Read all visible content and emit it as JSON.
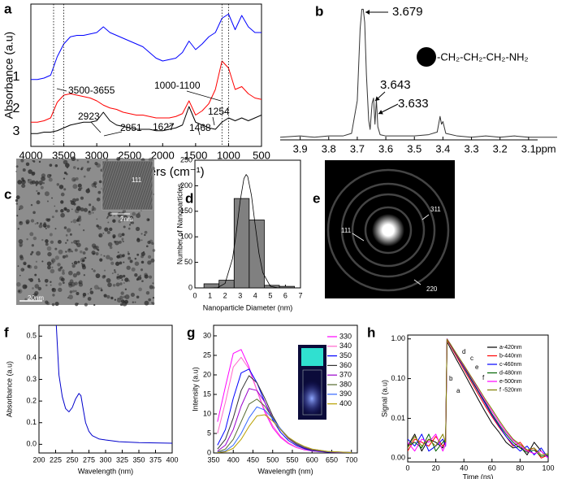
{
  "chart_data": [
    {
      "type": "line",
      "label": "a",
      "xlabel": "Wavenumbers (cm⁻¹)",
      "ylabel": "Absorbance (a.u)",
      "x": [
        4000,
        3900,
        3800,
        3700,
        3600,
        3500,
        3400,
        3300,
        3200,
        3100,
        3000,
        2900,
        2800,
        2700,
        2600,
        2500,
        2400,
        2300,
        2200,
        2100,
        2000,
        1900,
        1800,
        1700,
        1600,
        1500,
        1400,
        1300,
        1200,
        1100,
        1000,
        900,
        800,
        700,
        600,
        500
      ],
      "series": [
        {
          "name": "1",
          "color": "#0000ff",
          "values": [
            0.47,
            0.47,
            0.48,
            0.5,
            0.63,
            0.72,
            0.77,
            0.78,
            0.78,
            0.79,
            0.8,
            0.84,
            0.8,
            0.78,
            0.76,
            0.74,
            0.72,
            0.7,
            0.66,
            0.62,
            0.6,
            0.61,
            0.62,
            0.66,
            0.74,
            0.68,
            0.72,
            0.77,
            0.8,
            0.9,
            0.93,
            0.82,
            0.92,
            0.84,
            0.8,
            0.8
          ]
        },
        {
          "name": "2",
          "color": "#ff0000",
          "values": [
            0.17,
            0.17,
            0.18,
            0.2,
            0.31,
            0.36,
            0.37,
            0.36,
            0.35,
            0.34,
            0.32,
            0.29,
            0.27,
            0.26,
            0.24,
            0.23,
            0.22,
            0.22,
            0.21,
            0.2,
            0.2,
            0.2,
            0.21,
            0.23,
            0.32,
            0.22,
            0.25,
            0.3,
            0.4,
            0.6,
            0.55,
            0.4,
            0.42,
            0.37,
            0.34,
            0.33
          ]
        },
        {
          "name": "3",
          "color": "#000000",
          "values": [
            0.09,
            0.09,
            0.1,
            0.1,
            0.11,
            0.13,
            0.15,
            0.16,
            0.17,
            0.17,
            0.18,
            0.24,
            0.18,
            0.15,
            0.14,
            0.13,
            0.12,
            0.12,
            0.12,
            0.11,
            0.11,
            0.12,
            0.13,
            0.15,
            0.28,
            0.17,
            0.15,
            0.13,
            0.12,
            0.17,
            0.2,
            0.18,
            0.2,
            0.18,
            0.2,
            0.22
          ]
        }
      ],
      "xlim": [
        4000,
        500
      ],
      "xticks": [
        4000,
        3500,
        3000,
        2500,
        2000,
        1500,
        1000,
        500
      ],
      "ylim": [
        0,
        1
      ],
      "vlines": [
        3655,
        3500,
        1100,
        1000
      ],
      "annotations": [
        "3500-3655",
        "1000-1100",
        "2923",
        "2851",
        "1627",
        "1468",
        "1254"
      ]
    },
    {
      "type": "line",
      "label": "b",
      "xlabel": "ppm",
      "x": [
        3.97,
        3.9,
        3.85,
        3.8,
        3.75,
        3.72,
        3.7,
        3.69,
        3.684,
        3.679,
        3.674,
        3.668,
        3.66,
        3.655,
        3.648,
        3.643,
        3.638,
        3.633,
        3.628,
        3.62,
        3.6,
        3.55,
        3.5,
        3.45,
        3.42,
        3.41,
        3.405,
        3.4,
        3.39,
        3.35,
        3.3,
        3.25,
        3.2,
        3.15,
        3.1,
        3.05,
        3.0
      ],
      "values": [
        0.02,
        0.03,
        0.02,
        0.03,
        0.03,
        0.05,
        0.3,
        0.85,
        1.0,
        1.0,
        0.9,
        0.5,
        0.15,
        0.08,
        0.28,
        0.32,
        0.12,
        0.31,
        0.1,
        0.04,
        0.03,
        0.03,
        0.03,
        0.04,
        0.06,
        0.18,
        0.12,
        0.14,
        0.05,
        0.03,
        0.02,
        0.03,
        0.02,
        0.03,
        0.02,
        0.02,
        0.02
      ],
      "color": "#333333",
      "xlim": [
        3.97,
        3.0
      ],
      "xticks": [
        3.9,
        3.8,
        3.7,
        3.6,
        3.5,
        3.4,
        3.3,
        3.2,
        3.1
      ],
      "ylim": [
        0,
        1.04
      ],
      "annotations": [
        "3.679",
        "3.643",
        "3.633"
      ],
      "structure": "-CH₂-CH₂-CH₂-NH₂"
    },
    {
      "type": "image",
      "label": "c",
      "annotations": [
        "111",
        "2nm",
        "20nm"
      ]
    },
    {
      "type": "histogram",
      "label": "d",
      "xlabel": "Nanoparticle Diameter (nm)",
      "ylabel": "Number of Nanoparticles",
      "bins": [
        0.6,
        1.6,
        2.6,
        3.6,
        4.6,
        5.6,
        6.6
      ],
      "values": [
        8,
        15,
        175,
        133,
        5,
        3
      ],
      "color": "#808080",
      "fit": {
        "x": [
          1,
          1.5,
          2,
          2.5,
          2.75,
          3,
          3.25,
          3.4,
          3.5,
          3.75,
          4,
          4.25,
          4.5,
          5,
          5.5,
          6,
          6.5
        ],
        "values": [
          0.02,
          0.6,
          8.7,
          58,
          110,
          170,
          214,
          222,
          218,
          181,
          122,
          67,
          30,
          3,
          0.2,
          0,
          0
        ]
      },
      "xlim": [
        0,
        7
      ],
      "xticks": [
        0,
        1,
        2,
        3,
        4,
        5,
        6,
        7
      ],
      "ylim": [
        0,
        250
      ],
      "yticks": [
        0,
        50,
        100,
        150,
        200,
        250
      ]
    },
    {
      "type": "image",
      "label": "e",
      "annotations": [
        "111",
        "311",
        "220"
      ]
    },
    {
      "type": "line",
      "label": "f",
      "xlabel": "Wavelength (nm)",
      "ylabel": "Absorbance (a.u)",
      "x": [
        226,
        230,
        235,
        240,
        245,
        250,
        255,
        260,
        263,
        266,
        270,
        275,
        280,
        290,
        300,
        320,
        350,
        400
      ],
      "values": [
        0.55,
        0.32,
        0.22,
        0.165,
        0.15,
        0.17,
        0.21,
        0.235,
        0.225,
        0.17,
        0.1,
        0.06,
        0.04,
        0.025,
        0.02,
        0.012,
        0.008,
        0.005
      ],
      "color": "#0000cc",
      "xlim": [
        200,
        400
      ],
      "xticks": [
        200,
        225,
        250,
        275,
        300,
        325,
        350,
        375,
        400
      ],
      "ylim": [
        -0.04,
        0.55
      ],
      "yticks": [
        {
          "value": 0,
          "label": "0.0"
        },
        0.1,
        0.2,
        0.3,
        0.4,
        0.5
      ]
    },
    {
      "type": "line",
      "label": "g",
      "xlabel": "Wavelength (nm)",
      "ylabel": "Intensity (a.u)",
      "legend": "right",
      "x": [
        360,
        380,
        400,
        420,
        440,
        460,
        480,
        500,
        520,
        540,
        560,
        580,
        600,
        640,
        700
      ],
      "series": [
        {
          "name": "330",
          "color": "#ff00ff",
          "values": [
            8,
            17,
            25.5,
            26.5,
            22,
            16,
            10.5,
            6.5,
            4,
            2.4,
            1.4,
            0.8,
            0.5,
            0.2,
            0.1
          ]
        },
        {
          "name": "340",
          "color": "#ff66cc",
          "values": [
            5,
            13,
            22,
            24.5,
            21.5,
            16,
            11,
            7,
            4.3,
            2.6,
            1.5,
            0.9,
            0.5,
            0.2,
            0.1
          ]
        },
        {
          "name": "350",
          "color": "#0000ff",
          "values": [
            2,
            6,
            14,
            20.5,
            21.5,
            18,
            13,
            8.5,
            5.3,
            3.2,
            1.9,
            1.1,
            0.6,
            0.2,
            0.1
          ]
        },
        {
          "name": "360",
          "color": "#333333",
          "values": [
            1,
            3.5,
            9,
            16,
            19.8,
            18,
            14,
            9.5,
            6,
            3.7,
            2.2,
            1.3,
            0.7,
            0.3,
            0.1
          ]
        },
        {
          "name": "370",
          "color": "#9900cc",
          "values": [
            0.5,
            2,
            6,
            12,
            16.5,
            16,
            13,
            9,
            6,
            3.8,
            2.3,
            1.4,
            0.8,
            0.3,
            0.1
          ]
        },
        {
          "name": "380",
          "color": "#556b2f",
          "values": [
            0.3,
            1,
            3.5,
            8,
            12.5,
            13.8,
            12,
            9,
            6,
            3.9,
            2.4,
            1.5,
            0.9,
            0.3,
            0.1
          ]
        },
        {
          "name": "390",
          "color": "#3366ff",
          "values": [
            0.2,
            0.5,
            2,
            5,
            9,
            11.8,
            11,
            8.8,
            6.2,
            4,
            2.6,
            1.6,
            1,
            0.4,
            0.1
          ]
        },
        {
          "name": "400",
          "color": "#b8a000",
          "values": [
            0.1,
            0.3,
            1.2,
            3.5,
            6.8,
            9.5,
            9.8,
            8.2,
            6,
            4,
            2.7,
            1.7,
            1,
            0.4,
            0.1
          ]
        }
      ],
      "xlim": [
        350,
        715
      ],
      "xticks": [
        350,
        400,
        450,
        500,
        550,
        600,
        650,
        700
      ],
      "ylim": [
        0,
        32.7
      ],
      "yticks": [
        0,
        5,
        10,
        15,
        20,
        25,
        30
      ]
    },
    {
      "type": "line",
      "label": "h",
      "xlabel": "Time (ns)",
      "ylabel": "Signal (a.u)",
      "log_y": true,
      "legend": "right",
      "x": [
        0,
        5,
        10,
        15,
        20,
        25,
        27,
        28,
        30,
        35,
        40,
        45,
        50,
        55,
        60,
        65,
        70,
        75,
        80,
        85,
        90,
        95,
        100
      ],
      "series": [
        {
          "name": "a-420nm",
          "color": "#000000",
          "values": [
            0.002,
            0.004,
            0.0015,
            0.003,
            0.0025,
            0.0018,
            0.003,
            0.85,
            0.62,
            0.29,
            0.14,
            0.066,
            0.031,
            0.015,
            0.0075,
            0.0045,
            0.0025,
            0.0018,
            0.002,
            0.0012,
            0.0025,
            0.0015,
            0.001
          ]
        },
        {
          "name": "b-440nm",
          "color": "#ff0000",
          "values": [
            0.0015,
            0.003,
            0.0025,
            0.002,
            0.0035,
            0.002,
            0.0025,
            0.95,
            0.72,
            0.35,
            0.17,
            0.085,
            0.042,
            0.021,
            0.011,
            0.006,
            0.0035,
            0.002,
            0.0025,
            0.0015,
            0.0018,
            0.001,
            0.0012
          ]
        },
        {
          "name": "c-460nm",
          "color": "#0000ff",
          "values": [
            0.003,
            0.002,
            0.004,
            0.0015,
            0.002,
            0.003,
            0.002,
            1,
            0.76,
            0.38,
            0.19,
            0.095,
            0.048,
            0.024,
            0.012,
            0.0065,
            0.0035,
            0.0022,
            0.0015,
            0.002,
            0.0012,
            0.0018,
            0.001
          ]
        },
        {
          "name": "d-480nm",
          "color": "#006400",
          "values": [
            0.002,
            0.0025,
            0.0018,
            0.004,
            0.0015,
            0.0025,
            0.003,
            1,
            0.77,
            0.39,
            0.2,
            0.1,
            0.05,
            0.026,
            0.013,
            0.007,
            0.004,
            0.0025,
            0.0018,
            0.0014,
            0.0016,
            0.0011,
            0.0012
          ]
        },
        {
          "name": "e-500nm",
          "color": "#ff00ff",
          "values": [
            0.0025,
            0.0015,
            0.003,
            0.0025,
            0.004,
            0.0015,
            0.0022,
            1,
            0.78,
            0.4,
            0.21,
            0.11,
            0.055,
            0.028,
            0.015,
            0.008,
            0.0045,
            0.0028,
            0.002,
            0.0015,
            0.0013,
            0.0015,
            0.001
          ]
        },
        {
          "name": "f -520nm",
          "color": "#808000",
          "values": [
            0.0018,
            0.0035,
            0.002,
            0.003,
            0.002,
            0.004,
            0.0025,
            0.98,
            0.78,
            0.41,
            0.22,
            0.115,
            0.06,
            0.031,
            0.017,
            0.009,
            0.005,
            0.003,
            0.0022,
            0.0016,
            0.0018,
            0.0012,
            0.0013
          ]
        }
      ],
      "curve_labels": [
        "a",
        "b",
        "c",
        "d",
        "e",
        "f"
      ],
      "xlim": [
        0,
        100
      ],
      "xticks": [
        0,
        20,
        40,
        60,
        80,
        100
      ],
      "ylim": [
        0.0008,
        1.25
      ],
      "yticks": [
        {
          "value": 0.001,
          "label": "0.00"
        },
        {
          "value": 0.01,
          "label": "0.01"
        },
        {
          "value": 0.1,
          "label": "0.10"
        },
        {
          "value": 1,
          "label": "1.00"
        }
      ]
    }
  ]
}
